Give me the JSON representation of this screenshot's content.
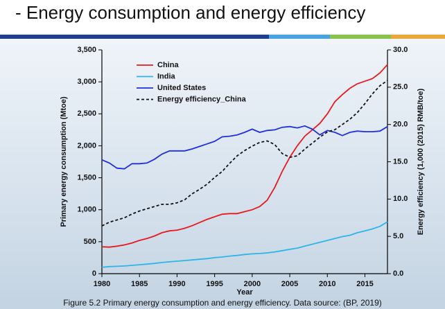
{
  "page_title": "- Energy consumption and energy efficiency",
  "caption": "Figure 5.2 Primary energy consumption and energy efficiency. Data source: (BP, 2019)",
  "chart_data": {
    "type": "line",
    "x_label": "Year",
    "y_label": "Primary energy consumption (Mtoe)",
    "y2_label": "Energy efficiency (1,000 (2015) RMB/toe)",
    "x": [
      1980,
      1981,
      1982,
      1983,
      1984,
      1985,
      1986,
      1987,
      1988,
      1989,
      1990,
      1991,
      1992,
      1993,
      1994,
      1995,
      1996,
      1997,
      1998,
      1999,
      2000,
      2001,
      2002,
      2003,
      2004,
      2005,
      2006,
      2007,
      2008,
      2009,
      2010,
      2011,
      2012,
      2013,
      2014,
      2015,
      2016,
      2017,
      2018
    ],
    "xlim": [
      1980,
      2018
    ],
    "xticks": [
      1980,
      1985,
      1990,
      1995,
      2000,
      2005,
      2010,
      2015
    ],
    "ylim": [
      0,
      3500
    ],
    "yticks": [
      0,
      500,
      {
        "value": 1000,
        "label": "1,000"
      },
      {
        "value": 1500,
        "label": "1,500"
      },
      {
        "value": 2000,
        "label": "2,000"
      },
      {
        "value": 2500,
        "label": "2,500"
      },
      {
        "value": 3000,
        "label": "3,000"
      },
      {
        "value": 3500,
        "label": "3,500"
      }
    ],
    "y2lim": [
      0,
      30
    ],
    "y2ticks": [
      {
        "value": 0,
        "label": "0.0"
      },
      {
        "value": 5,
        "label": "5.0"
      },
      {
        "value": 10,
        "label": "10.0"
      },
      {
        "value": 15,
        "label": "15.0"
      },
      {
        "value": 20,
        "label": "20.0"
      },
      {
        "value": 25,
        "label": "25.0"
      },
      {
        "value": 30,
        "label": "30.0"
      }
    ],
    "legend": "upper left",
    "series": [
      {
        "name": "China",
        "color": "#e8191e",
        "dashed": false,
        "values": [
          420,
          415,
          430,
          450,
          480,
          520,
          550,
          590,
          640,
          670,
          680,
          710,
          750,
          800,
          850,
          890,
          930,
          940,
          940,
          970,
          1000,
          1050,
          1150,
          1350,
          1600,
          1820,
          2000,
          2150,
          2250,
          2350,
          2500,
          2690,
          2800,
          2900,
          2970,
          3010,
          3050,
          3140,
          3270
        ]
      },
      {
        "name": "India",
        "color": "#2bb5e8",
        "dashed": false,
        "values": [
          100,
          110,
          115,
          120,
          130,
          140,
          150,
          160,
          175,
          185,
          195,
          205,
          215,
          225,
          235,
          250,
          260,
          275,
          285,
          300,
          310,
          315,
          325,
          340,
          360,
          380,
          400,
          430,
          460,
          490,
          520,
          550,
          580,
          600,
          640,
          670,
          700,
          740,
          810
        ]
      },
      {
        "name": "United States",
        "color": "#1f2fe0",
        "dashed": false,
        "values": [
          1780,
          1730,
          1650,
          1640,
          1720,
          1720,
          1730,
          1790,
          1870,
          1920,
          1920,
          1920,
          1950,
          1990,
          2030,
          2070,
          2140,
          2150,
          2170,
          2210,
          2260,
          2210,
          2240,
          2250,
          2290,
          2300,
          2280,
          2310,
          2260,
          2170,
          2240,
          2210,
          2160,
          2210,
          2230,
          2220,
          2220,
          2230,
          2300
        ]
      },
      {
        "name": "Energy efficiency_China",
        "color": "#111111",
        "dashed": true,
        "axis": "y2",
        "values": [
          6.4,
          6.9,
          7.2,
          7.5,
          8.0,
          8.4,
          8.7,
          9.0,
          9.3,
          9.3,
          9.5,
          9.9,
          10.7,
          11.3,
          12.0,
          12.9,
          13.7,
          14.8,
          15.8,
          16.5,
          17.1,
          17.6,
          17.8,
          17.3,
          16.1,
          15.6,
          15.8,
          16.7,
          17.5,
          18.3,
          19.0,
          19.3,
          20.0,
          20.7,
          21.6,
          22.8,
          24.1,
          25.2,
          25.9
        ]
      }
    ]
  }
}
